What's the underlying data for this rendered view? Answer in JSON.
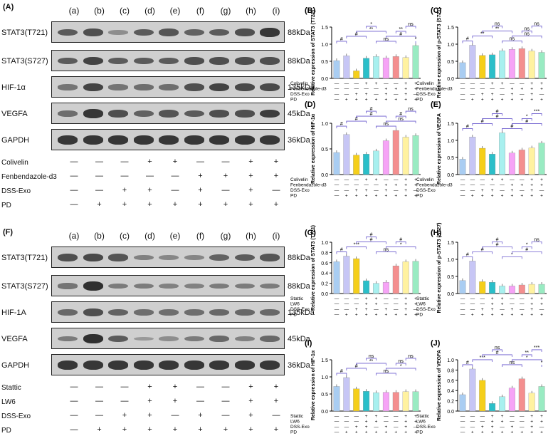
{
  "figure": {
    "panel_A": "(A)",
    "panel_F": "(F)",
    "lanes": [
      "(a)",
      "(b)",
      "(c)",
      "(d)",
      "(e)",
      "(f)",
      "(g)",
      "(h)",
      "(i)"
    ]
  },
  "blots_top": [
    {
      "name": "STAT3(T721)",
      "kda": "88kDa",
      "intensity": [
        0.6,
        0.7,
        0.2,
        0.6,
        0.65,
        0.55,
        0.6,
        0.7,
        0.9
      ]
    },
    {
      "name": "STAT3(S727)",
      "kda": "88kDa",
      "intensity": [
        0.6,
        0.8,
        0.6,
        0.6,
        0.6,
        0.7,
        0.7,
        0.7,
        0.7
      ]
    },
    {
      "name": "HIF-1α",
      "kda": "135kDa",
      "intensity": [
        0.4,
        0.8,
        0.4,
        0.45,
        0.45,
        0.7,
        0.8,
        0.75,
        0.75
      ]
    },
    {
      "name": "VEGFA",
      "kda": "45kDa",
      "intensity": [
        0.45,
        0.9,
        0.7,
        0.55,
        0.65,
        0.6,
        0.7,
        0.7,
        0.85
      ]
    },
    {
      "name": "GAPDH",
      "kda": "36kDa",
      "intensity": [
        0.9,
        0.9,
        0.9,
        0.9,
        0.9,
        0.9,
        0.9,
        0.9,
        0.9
      ]
    }
  ],
  "blots_bottom": [
    {
      "name": "STAT3(T721)",
      "kda": "88kDa",
      "intensity": [
        0.7,
        0.75,
        0.65,
        0.3,
        0.25,
        0.25,
        0.55,
        0.6,
        0.65
      ]
    },
    {
      "name": "STAT3(S727)",
      "kda": "88kDa",
      "intensity": [
        0.4,
        0.95,
        0.35,
        0.35,
        0.3,
        0.3,
        0.35,
        0.35,
        0.35
      ]
    },
    {
      "name": "HIF-1A",
      "kda": "135kDa",
      "intensity": [
        0.5,
        0.7,
        0.55,
        0.45,
        0.45,
        0.45,
        0.5,
        0.5,
        0.5
      ]
    },
    {
      "name": "VEGFA",
      "kda": "45kDa",
      "intensity": [
        0.35,
        0.95,
        0.6,
        0.1,
        0.2,
        0.35,
        0.5,
        0.3,
        0.5
      ]
    },
    {
      "name": "GAPDH",
      "kda": "36kDa",
      "intensity": [
        0.9,
        0.9,
        0.9,
        0.9,
        0.9,
        0.9,
        0.9,
        0.9,
        0.9
      ]
    }
  ],
  "conditions_top": [
    {
      "label": "Colivelin",
      "marks": [
        "—",
        "—",
        "—",
        "+",
        "+",
        "—",
        "—",
        "+",
        "+"
      ]
    },
    {
      "label": "Fenbendazole-d3",
      "marks": [
        "—",
        "—",
        "—",
        "—",
        "—",
        "+",
        "+",
        "+",
        "+"
      ]
    },
    {
      "label": "DSS-Exo",
      "marks": [
        "—",
        "—",
        "+",
        "+",
        "—",
        "+",
        "—",
        "+",
        "—"
      ]
    },
    {
      "label": "PD",
      "marks": [
        "—",
        "+",
        "+",
        "+",
        "+",
        "+",
        "+",
        "+",
        "+"
      ]
    }
  ],
  "conditions_bottom": [
    {
      "label": "Stattic",
      "marks": [
        "—",
        "—",
        "—",
        "+",
        "+",
        "—",
        "—",
        "+",
        "+"
      ]
    },
    {
      "label": "LW6",
      "marks": [
        "—",
        "—",
        "—",
        "+",
        "+",
        "—",
        "—",
        "+",
        "+"
      ]
    },
    {
      "label": "DSS-Exo",
      "marks": [
        "—",
        "—",
        "+",
        "+",
        "—",
        "+",
        "—",
        "+",
        "—"
      ]
    },
    {
      "label": "PD",
      "marks": [
        "—",
        "+",
        "+",
        "+",
        "+",
        "+",
        "+",
        "+",
        "+"
      ]
    }
  ],
  "colors": [
    "#a9cdf2",
    "#c7c6f5",
    "#f5cf1a",
    "#2bbfc9",
    "#a8f0ef",
    "#f6a3f6",
    "#f48f8f",
    "#fff2a0",
    "#99ebc2"
  ],
  "chart_data": [
    {
      "panel": "(B)",
      "type": "bar",
      "ylabel": "Relative expression of STAT3 (T721)",
      "ylim": [
        0,
        1.5
      ],
      "yticks": [
        "0.0",
        "0.5",
        "1.0",
        "1.5"
      ],
      "values": [
        0.52,
        0.66,
        0.22,
        0.59,
        0.64,
        0.6,
        0.64,
        0.61,
        0.96
      ],
      "conditions": [
        {
          "label": "Colivelin",
          "marks": [
            "—",
            "—",
            "—",
            "+",
            "+",
            "—",
            "—",
            "+",
            "+"
          ]
        },
        {
          "label": "Fenbendazole-d3",
          "marks": [
            "—",
            "—",
            "—",
            "—",
            "—",
            "+",
            "+",
            "+",
            "+"
          ]
        },
        {
          "label": "DSS-Exo",
          "marks": [
            "—",
            "—",
            "+",
            "+",
            "—",
            "+",
            "—",
            "+",
            "—"
          ]
        },
        {
          "label": "PD",
          "marks": [
            "—",
            "+",
            "+",
            "+",
            "+",
            "+",
            "+",
            "+",
            "+"
          ]
        }
      ],
      "annotations": [
        "#",
        "#",
        "**",
        "*",
        "ns",
        "#",
        "**",
        "ns",
        "*"
      ]
    },
    {
      "panel": "(C)",
      "type": "bar",
      "ylabel": "Relative expression of p-STAT3 (S727)",
      "ylim": [
        0,
        1.5
      ],
      "yticks": [
        "0.0",
        "0.5",
        "1.0",
        "1.5"
      ],
      "values": [
        0.46,
        0.97,
        0.67,
        0.69,
        0.81,
        0.85,
        0.87,
        0.8,
        0.76
      ],
      "conditions": [
        {
          "label": "Colivelin",
          "marks": [
            "—",
            "—",
            "—",
            "+",
            "+",
            "—",
            "—",
            "+",
            "+"
          ]
        },
        {
          "label": "Fenbendazole-d3",
          "marks": [
            "—",
            "—",
            "—",
            "—",
            "—",
            "+",
            "+",
            "+",
            "+"
          ]
        },
        {
          "label": "DSS-Exo",
          "marks": [
            "—",
            "—",
            "+",
            "+",
            "—",
            "+",
            "—",
            "+",
            "—"
          ]
        },
        {
          "label": "PD",
          "marks": [
            "—",
            "+",
            "+",
            "+",
            "+",
            "+",
            "+",
            "+",
            "+"
          ]
        }
      ],
      "annotations": [
        "#",
        "**",
        "**",
        "ns",
        "ns",
        "ns",
        "ns",
        "ns"
      ]
    },
    {
      "panel": "(D)",
      "type": "bar",
      "ylabel": "Relative expression of HIF-1α",
      "ylim": [
        0,
        1.0
      ],
      "yticks": [
        "0.0",
        "0.5",
        "1.0"
      ],
      "values": [
        0.43,
        0.78,
        0.38,
        0.4,
        0.46,
        0.66,
        0.86,
        0.73,
        0.76
      ],
      "conditions": [
        {
          "label": "Colivelin",
          "marks": [
            "—",
            "—",
            "—",
            "+",
            "+",
            "—",
            "—",
            "+",
            "+"
          ]
        },
        {
          "label": "Fenbendazole-d3",
          "marks": [
            "—",
            "—",
            "—",
            "—",
            "—",
            "+",
            "+",
            "+",
            "+"
          ]
        },
        {
          "label": "DSS-Exo",
          "marks": [
            "—",
            "—",
            "+",
            "+",
            "—",
            "+",
            "—",
            "+",
            "—"
          ]
        },
        {
          "label": "PD",
          "marks": [
            "—",
            "+",
            "+",
            "+",
            "+",
            "+",
            "+",
            "+",
            "+"
          ]
        }
      ],
      "annotations": [
        "#",
        "#",
        "#",
        "#",
        "ns",
        "ns",
        "#",
        "ns"
      ]
    },
    {
      "panel": "(E)",
      "type": "bar",
      "ylabel": "Relative expression of VEGFA",
      "ylim": [
        0,
        1.5
      ],
      "yticks": [
        "0.0",
        "0.5",
        "1.0",
        "1.5"
      ],
      "values": [
        0.45,
        1.1,
        0.77,
        0.6,
        1.22,
        0.63,
        0.72,
        0.78,
        0.92
      ],
      "conditions": [
        {
          "label": "Colivelin",
          "marks": [
            "—",
            "—",
            "—",
            "+",
            "+",
            "—",
            "—",
            "+",
            "+"
          ]
        },
        {
          "label": "Fenbendazole-d3",
          "marks": [
            "—",
            "—",
            "—",
            "—",
            "—",
            "+",
            "+",
            "+",
            "+"
          ]
        },
        {
          "label": "DSS-Exo",
          "marks": [
            "—",
            "—",
            "+",
            "+",
            "—",
            "+",
            "—",
            "+",
            "—"
          ]
        },
        {
          "label": "PD",
          "marks": [
            "—",
            "+",
            "+",
            "+",
            "+",
            "+",
            "+",
            "+",
            "+"
          ]
        }
      ],
      "annotations": [
        "#",
        "#",
        "#",
        "#",
        "#",
        "#",
        "*",
        "***"
      ]
    },
    {
      "panel": "(G)",
      "type": "bar",
      "ylabel": "Relative expression of STAT3 (T721)",
      "ylim": [
        0,
        1.0
      ],
      "yticks": [
        "0.0",
        "0.2",
        "0.4",
        "0.6",
        "0.8",
        "1.0"
      ],
      "values": [
        0.62,
        0.73,
        0.68,
        0.25,
        0.2,
        0.22,
        0.54,
        0.62,
        0.63
      ],
      "conditions": [
        {
          "label": "Stattic",
          "marks": [
            "—",
            "—",
            "—",
            "+",
            "+",
            "—",
            "—",
            "+",
            "+"
          ]
        },
        {
          "label": "LW6",
          "marks": [
            "—",
            "—",
            "—",
            "+",
            "+",
            "—",
            "—",
            "+",
            "+"
          ]
        },
        {
          "label": "DSS-Exo",
          "marks": [
            "—",
            "—",
            "+",
            "+",
            "—",
            "+",
            "—",
            "+",
            "—"
          ]
        },
        {
          "label": "PD",
          "marks": [
            "—",
            "+",
            "+",
            "+",
            "+",
            "+",
            "+",
            "+",
            "+"
          ]
        }
      ],
      "annotations": [
        "#",
        "***",
        "#",
        "#",
        "ns",
        "*",
        "#"
      ]
    },
    {
      "panel": "(H)",
      "type": "bar",
      "ylabel": "Relative expression of p-STAT3 (S727)",
      "ylim": [
        0,
        1.5
      ],
      "yticks": [
        "0.0",
        "0.5",
        "1.0",
        "1.5"
      ],
      "values": [
        0.38,
        0.95,
        0.35,
        0.33,
        0.22,
        0.22,
        0.25,
        0.27,
        0.27
      ],
      "conditions": [
        {
          "label": "Stattic",
          "marks": [
            "—",
            "—",
            "—",
            "+",
            "+",
            "—",
            "—",
            "+",
            "+"
          ]
        },
        {
          "label": "LW6",
          "marks": [
            "—",
            "—",
            "—",
            "+",
            "+",
            "—",
            "—",
            "+",
            "+"
          ]
        },
        {
          "label": "DSS-Exo",
          "marks": [
            "—",
            "—",
            "+",
            "+",
            "—",
            "+",
            "—",
            "+",
            "—"
          ]
        },
        {
          "label": "PD",
          "marks": [
            "—",
            "+",
            "+",
            "+",
            "+",
            "+",
            "+",
            "+",
            "+"
          ]
        }
      ],
      "annotations": [
        "#",
        "#",
        "#",
        "#",
        "*",
        "#",
        "*",
        "ns"
      ]
    },
    {
      "panel": "(I)",
      "type": "bar",
      "ylabel": "Relative expression of HIF-1α",
      "ylim": [
        0,
        1.5
      ],
      "yticks": [
        "0.0",
        "0.5",
        "1.0",
        "1.5"
      ],
      "values": [
        0.72,
        0.98,
        0.65,
        0.58,
        0.54,
        0.55,
        0.55,
        0.57,
        0.57
      ],
      "conditions": [
        {
          "label": "Stattic",
          "marks": [
            "—",
            "—",
            "—",
            "+",
            "+",
            "—",
            "—",
            "+",
            "+"
          ]
        },
        {
          "label": "LW6",
          "marks": [
            "—",
            "—",
            "—",
            "+",
            "+",
            "—",
            "—",
            "+",
            "+"
          ]
        },
        {
          "label": "DSS-Exo",
          "marks": [
            "—",
            "—",
            "+",
            "+",
            "—",
            "+",
            "—",
            "+",
            "—"
          ]
        },
        {
          "label": "PD",
          "marks": [
            "—",
            "+",
            "+",
            "+",
            "+",
            "+",
            "+",
            "+",
            "+"
          ]
        }
      ],
      "annotations": [
        "#",
        "#",
        "**",
        "ns",
        "ns",
        "*",
        "ns",
        "ns"
      ]
    },
    {
      "panel": "(J)",
      "type": "bar",
      "ylabel": "Relative expression of VEGFA",
      "ylim": [
        0,
        1.0
      ],
      "yticks": [
        "0.0",
        "0.2",
        "0.4",
        "0.6",
        "0.8",
        "1.0"
      ],
      "values": [
        0.32,
        0.82,
        0.6,
        0.15,
        0.28,
        0.45,
        0.63,
        0.35,
        0.48
      ],
      "conditions": [
        {
          "label": "Stattic",
          "marks": [
            "—",
            "—",
            "—",
            "+",
            "+",
            "—",
            "—",
            "+",
            "+"
          ]
        },
        {
          "label": "LW6",
          "marks": [
            "—",
            "—",
            "—",
            "+",
            "+",
            "—",
            "—",
            "+",
            "+"
          ]
        },
        {
          "label": "DSS-Exo",
          "marks": [
            "—",
            "—",
            "+",
            "+",
            "—",
            "+",
            "—",
            "+",
            "—"
          ]
        },
        {
          "label": "PD",
          "marks": [
            "—",
            "+",
            "+",
            "+",
            "+",
            "+",
            "+",
            "+",
            "+"
          ]
        }
      ],
      "annotations": [
        "#",
        "***",
        "#",
        "ns",
        "ns",
        "*",
        "**",
        "***",
        "*"
      ]
    }
  ]
}
